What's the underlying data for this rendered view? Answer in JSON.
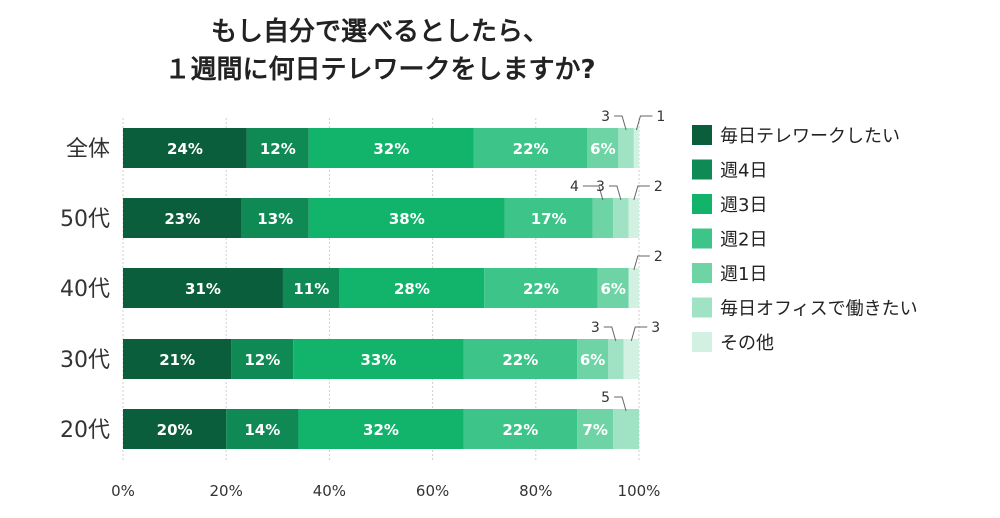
{
  "chart_data": {
    "type": "bar",
    "orientation": "horizontal",
    "stacked": true,
    "title_lines": [
      "もし自分で選べるとしたら、",
      "１週間に何日テレワークをしますか?"
    ],
    "categories": [
      "全体",
      "50代",
      "40代",
      "30代",
      "20代"
    ],
    "series": [
      {
        "name": "毎日テレワークしたい",
        "color": "#0b5e3b",
        "values": [
          24,
          23,
          31,
          21,
          20
        ]
      },
      {
        "name": "週4日",
        "color": "#0f8a55",
        "values": [
          12,
          13,
          11,
          12,
          14
        ]
      },
      {
        "name": "週3日",
        "color": "#12b46b",
        "values": [
          32,
          38,
          28,
          33,
          32
        ]
      },
      {
        "name": "週2日",
        "color": "#3dc489",
        "values": [
          22,
          17,
          22,
          22,
          22
        ]
      },
      {
        "name": "週1日",
        "color": "#6ed4a6",
        "values": [
          6,
          4,
          6,
          6,
          7
        ]
      },
      {
        "name": "毎日オフィスで働きたい",
        "color": "#9fe2c4",
        "values": [
          3,
          3,
          0,
          3,
          5
        ]
      },
      {
        "name": "その他",
        "color": "#d2f1e2",
        "values": [
          1,
          2,
          2,
          3,
          0
        ]
      }
    ],
    "data_labels": [
      [
        "24%",
        "12%",
        "32%",
        "22%",
        "6%",
        "",
        ""
      ],
      [
        "23%",
        "13%",
        "38%",
        "17%",
        "",
        "",
        ""
      ],
      [
        "31%",
        "11%",
        "28%",
        "22%",
        "6%",
        "",
        ""
      ],
      [
        "21%",
        "12%",
        "33%",
        "22%",
        "6%",
        "",
        ""
      ],
      [
        "20%",
        "14%",
        "32%",
        "22%",
        "7%",
        "",
        ""
      ]
    ],
    "callouts": [
      {
        "row": 0,
        "series": 5,
        "text": "3"
      },
      {
        "row": 0,
        "series": 6,
        "text": "1"
      },
      {
        "row": 1,
        "series": 4,
        "text": "4"
      },
      {
        "row": 1,
        "series": 5,
        "text": "3"
      },
      {
        "row": 1,
        "series": 6,
        "text": "2"
      },
      {
        "row": 2,
        "series": 6,
        "text": "2"
      },
      {
        "row": 3,
        "series": 5,
        "text": "3"
      },
      {
        "row": 3,
        "series": 6,
        "text": "3"
      },
      {
        "row": 4,
        "series": 5,
        "text": "5"
      }
    ],
    "x_ticks": [
      "0%",
      "20%",
      "40%",
      "60%",
      "80%",
      "100%"
    ],
    "xlim": [
      0,
      100
    ],
    "grid": true,
    "legend_position": "right"
  }
}
